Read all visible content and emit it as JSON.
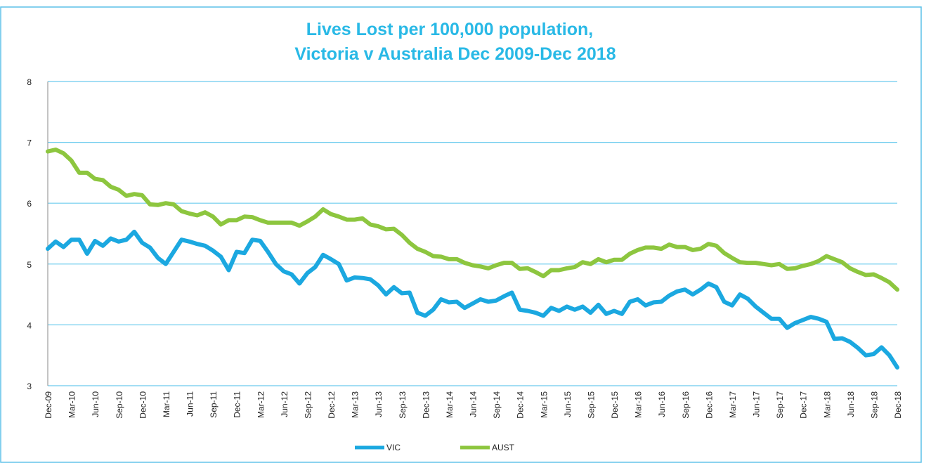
{
  "chart_data": {
    "type": "line",
    "title": [
      "Lives Lost per 100,000 population,",
      "Victoria v Australia Dec 2009-Dec 2018"
    ],
    "categories": [
      "Dec-09",
      null,
      null,
      "Mar-10",
      null,
      null,
      "Jun-10",
      null,
      null,
      "Sep-10",
      null,
      null,
      "Dec-10",
      null,
      null,
      "Mar-11",
      null,
      null,
      "Jun-11",
      null,
      null,
      "Sep-11",
      null,
      null,
      "Dec-11",
      null,
      null,
      "Mar-12",
      null,
      null,
      "Jun-12",
      null,
      null,
      "Sep-12",
      null,
      null,
      "Dec-12",
      null,
      null,
      "Mar-13",
      null,
      null,
      "Jun-13",
      null,
      null,
      "Sep-13",
      null,
      null,
      "Dec-13",
      null,
      null,
      "Mar-14",
      null,
      null,
      "Jun-14",
      null,
      null,
      "Sep-14",
      null,
      null,
      "Dec-14",
      null,
      null,
      "Mar-15",
      null,
      null,
      "Jun-15",
      null,
      null,
      "Sep-15",
      null,
      null,
      "Dec-15",
      null,
      null,
      "Mar-16",
      null,
      null,
      "Jun-16",
      null,
      null,
      "Sep-16",
      null,
      null,
      "Dec-16",
      null,
      null,
      "Mar-17",
      null,
      null,
      "Jun-17",
      null,
      null,
      "Sep-17",
      null,
      null,
      "Dec-17",
      null,
      null,
      "Mar-18",
      null,
      null,
      "Jun-18",
      null,
      null,
      "Sep-18",
      null,
      null,
      "Dec-18"
    ],
    "series": [
      {
        "name": "VIC",
        "color": "#1ba8e0",
        "values": [
          5.25,
          5.37,
          5.28,
          5.4,
          5.4,
          5.17,
          5.38,
          5.3,
          5.42,
          5.37,
          5.4,
          5.53,
          5.35,
          5.27,
          5.1,
          5.0,
          5.2,
          5.4,
          5.37,
          5.33,
          5.3,
          5.22,
          5.12,
          4.9,
          5.2,
          5.18,
          5.4,
          5.38,
          5.2,
          5.0,
          4.88,
          4.83,
          4.68,
          4.85,
          4.95,
          5.15,
          5.08,
          5.0,
          4.73,
          4.78,
          4.77,
          4.75,
          4.65,
          4.5,
          4.62,
          4.52,
          4.53,
          4.2,
          4.15,
          4.25,
          4.42,
          4.37,
          4.38,
          4.28,
          4.35,
          4.42,
          4.38,
          4.4,
          4.47,
          4.53,
          4.25,
          4.23,
          4.2,
          4.15,
          4.28,
          4.23,
          4.3,
          4.25,
          4.3,
          4.2,
          4.33,
          4.18,
          4.23,
          4.18,
          4.38,
          4.42,
          4.32,
          4.37,
          4.38,
          4.48,
          4.55,
          4.58,
          4.5,
          4.58,
          4.68,
          4.62,
          4.38,
          4.32,
          4.5,
          4.43,
          4.3,
          4.2,
          4.1,
          4.1,
          3.95,
          4.03,
          4.08,
          4.13,
          4.1,
          4.05,
          3.77,
          3.78,
          3.72,
          3.62,
          3.5,
          3.52,
          3.63,
          3.5,
          3.3
        ]
      },
      {
        "name": "AUST",
        "color": "#8dc63f",
        "values": [
          6.85,
          6.88,
          6.82,
          6.7,
          6.5,
          6.5,
          6.4,
          6.38,
          6.27,
          6.22,
          6.12,
          6.15,
          6.13,
          5.98,
          5.97,
          6.0,
          5.98,
          5.87,
          5.83,
          5.8,
          5.85,
          5.78,
          5.65,
          5.72,
          5.72,
          5.78,
          5.77,
          5.72,
          5.68,
          5.68,
          5.68,
          5.68,
          5.63,
          5.7,
          5.78,
          5.9,
          5.82,
          5.78,
          5.73,
          5.73,
          5.75,
          5.65,
          5.62,
          5.57,
          5.58,
          5.48,
          5.35,
          5.25,
          5.2,
          5.13,
          5.12,
          5.08,
          5.08,
          5.02,
          4.98,
          4.96,
          4.93,
          4.98,
          5.02,
          5.02,
          4.92,
          4.93,
          4.87,
          4.8,
          4.9,
          4.9,
          4.93,
          4.95,
          5.03,
          5.0,
          5.08,
          5.03,
          5.07,
          5.07,
          5.17,
          5.23,
          5.27,
          5.27,
          5.25,
          5.32,
          5.28,
          5.28,
          5.23,
          5.25,
          5.33,
          5.3,
          5.18,
          5.1,
          5.03,
          5.02,
          5.02,
          5.0,
          4.98,
          5.0,
          4.92,
          4.93,
          4.97,
          5.0,
          5.05,
          5.13,
          5.08,
          5.03,
          4.93,
          4.87,
          4.82,
          4.83,
          4.77,
          4.7,
          4.58
        ]
      }
    ],
    "ylim": [
      3,
      8
    ],
    "yticks": [
      3,
      4,
      5,
      6,
      7,
      8
    ],
    "grid": true,
    "legend": "bottom"
  }
}
